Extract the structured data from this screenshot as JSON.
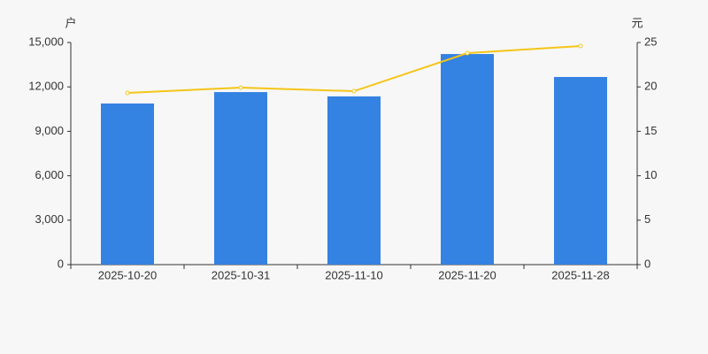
{
  "chart_data": {
    "type": "bar",
    "y_label": "户",
    "y2_label": "元",
    "categories": [
      "2025-10-20",
      "2025-10-31",
      "2025-11-10",
      "2025-11-20",
      "2025-11-28"
    ],
    "series": [
      {
        "type": "bar",
        "color": "#3482e2",
        "values": [
          10880,
          11650,
          11360,
          14220,
          12670
        ]
      },
      {
        "type": "line",
        "axis": "y2",
        "color": "#f5c518",
        "values": [
          19.32,
          19.92,
          19.52,
          23.8,
          24.6
        ]
      }
    ],
    "ylim": [
      0,
      15000
    ],
    "yticks": [
      0,
      {
        "value": 3000,
        "label": "3,000"
      },
      {
        "value": 6000,
        "label": "6,000"
      },
      {
        "value": 9000,
        "label": "9,000"
      },
      {
        "value": 12000,
        "label": "12,000"
      },
      {
        "value": 15000,
        "label": "15,000"
      }
    ],
    "y2lim": [
      0,
      25
    ],
    "y2ticks": [
      0,
      5,
      10,
      15,
      20,
      25
    ],
    "grid": false
  }
}
